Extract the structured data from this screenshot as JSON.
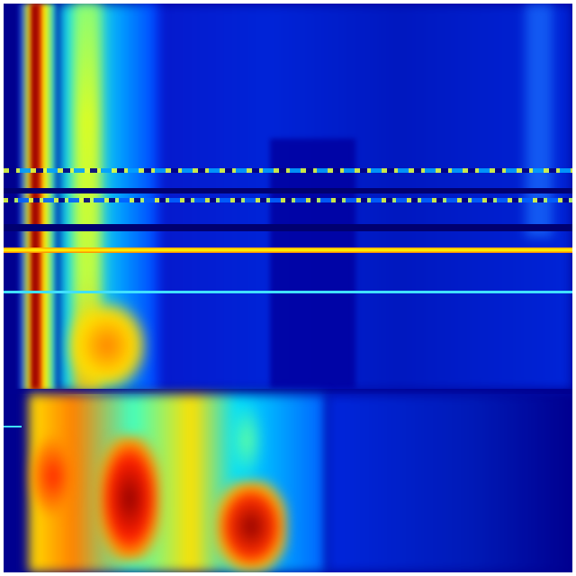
{
  "image": {
    "type": "heatmap",
    "colormap": "jet",
    "colors": {
      "background": "#00008f",
      "low": "#0000ff",
      "mid_low": "#00c8ff",
      "mid": "#80ff80",
      "mid_high": "#ffff00",
      "high": "#ff2000",
      "max": "#800000",
      "border": "#ffffff"
    }
  }
}
